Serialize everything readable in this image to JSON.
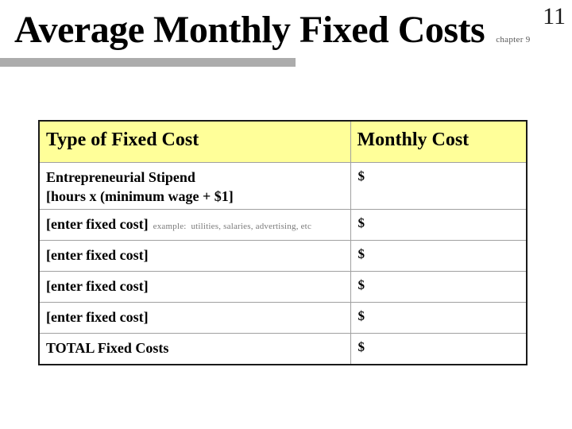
{
  "page": {
    "slide_number": "11",
    "title": "Average Monthly Fixed Costs",
    "chapter_note": "chapter 9"
  },
  "colors": {
    "header_bg": "#ffff99",
    "accent_bar": "#acacac",
    "grid_line": "#a0a0a0",
    "outer_border": "#1a1a1a",
    "note_gray": "#7a7a7a"
  },
  "table": {
    "headers": [
      "Type of Fixed Cost",
      "Monthly Cost"
    ],
    "rows": [
      {
        "label": "Entrepreneurial Stipend",
        "label_line2": "[hours x (minimum wage + $1]",
        "note": "",
        "value": "$",
        "total": false
      },
      {
        "label": "[enter fixed cost]",
        "label_line2": "",
        "note": "example:  utilities, salaries, advertising, etc",
        "value": "$",
        "total": false
      },
      {
        "label": "[enter fixed cost]",
        "label_line2": "",
        "note": "",
        "value": "$",
        "total": false
      },
      {
        "label": "[enter fixed cost]",
        "label_line2": "",
        "note": "",
        "value": "$",
        "total": false
      },
      {
        "label": "[enter fixed cost]",
        "label_line2": "",
        "note": "",
        "value": "$",
        "total": false
      },
      {
        "label": "TOTAL Fixed Costs",
        "label_line2": "",
        "note": "",
        "value": "$",
        "total": true
      }
    ]
  }
}
